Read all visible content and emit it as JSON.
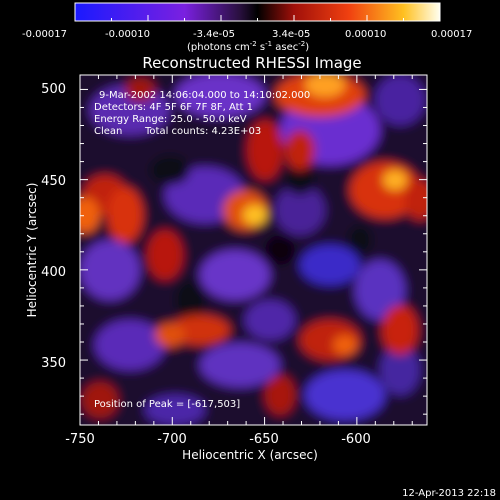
{
  "colorbar": {
    "ticks": [
      "-0.00017",
      "-0.00010",
      "-3.4e-05",
      "3.4e-05",
      "0.00010",
      "0.00017"
    ],
    "unit_label": "(photons cm",
    "unit_exp1": "-2",
    "unit_mid": " s",
    "unit_exp2": "-1",
    "unit_end": " asec",
    "unit_exp3": "-2",
    "unit_close": ")"
  },
  "plot": {
    "title": "Reconstructed RHESSI Image",
    "xlabel": "Heliocentric X (arcsec)",
    "ylabel": "Heliocentric Y (arcsec)",
    "xticks": [
      "-750",
      "-700",
      "-650",
      "-600"
    ],
    "yticks": [
      "500",
      "450",
      "400",
      "350"
    ],
    "xlim": [
      -750,
      -562
    ],
    "ylim": [
      314,
      508
    ]
  },
  "annotations": {
    "line1": "9-Mar-2002 14:06:04.000 to 14:10:02.000",
    "line2": "Detectors: 4F 5F 6F 7F 8F, Att 1",
    "line3": "Energy Range: 25.0 - 50.0 keV",
    "line4_a": "Clean",
    "line4_b": "Total counts: 4.23E+03",
    "peak": "Position of Peak = [-617,503]"
  },
  "footer": {
    "timestamp": "12-Apr-2013 22:18"
  },
  "colors": {
    "cmap": [
      "#1a1aff",
      "#6a1aee",
      "#3b1a6a",
      "#000000",
      "#a0100a",
      "#f05010",
      "#ffc020",
      "#ffffe0"
    ]
  }
}
